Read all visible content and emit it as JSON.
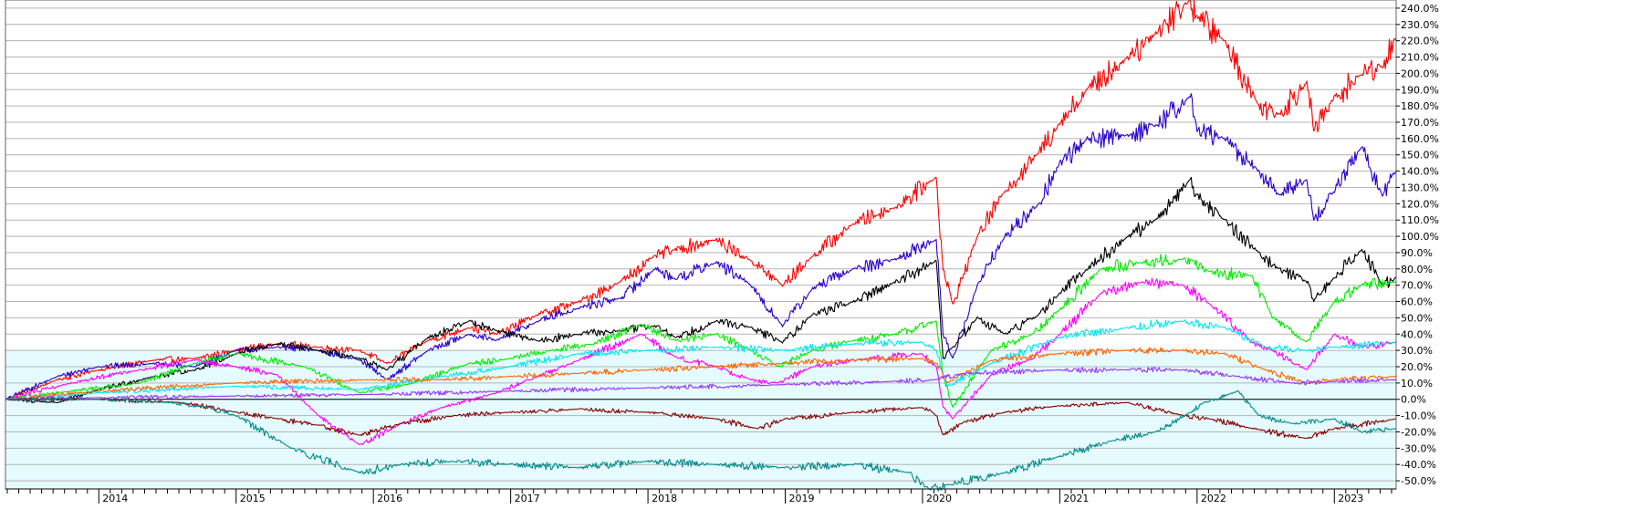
{
  "chart_data": {
    "type": "line",
    "title": "",
    "xlabel": "",
    "ylabel": "",
    "ylim": [
      -55,
      245
    ],
    "xlim": [
      2013.32,
      2023.45
    ],
    "y_ticks": [
      240,
      230,
      220,
      210,
      200,
      190,
      180,
      170,
      160,
      150,
      140,
      130,
      120,
      110,
      100,
      90,
      80,
      70,
      60,
      50,
      40,
      30,
      20,
      10,
      0,
      -10,
      -20,
      -30,
      -40,
      -50
    ],
    "y_tick_labels": [
      "240.0%",
      "230.0%",
      "220.0%",
      "210.0%",
      "200.0%",
      "190.0%",
      "180.0%",
      "170.0%",
      "160.0%",
      "150.0%",
      "140.0%",
      "130.0%",
      "120.0%",
      "110.0%",
      "100.0%",
      "90.0%",
      "80.0%",
      "70.0%",
      "60.0%",
      "50.0%",
      "40.0%",
      "30.0%",
      "20.0%",
      "10.0%",
      "0.0%",
      "-10.0%",
      "-20.0%",
      "-30.0%",
      "-40.0%",
      "-50.0%"
    ],
    "years": [
      {
        "x": 2014,
        "label": "2014"
      },
      {
        "x": 2015,
        "label": "2015"
      },
      {
        "x": 2016,
        "label": "2016"
      },
      {
        "x": 2017,
        "label": "2017"
      },
      {
        "x": 2018,
        "label": "2018"
      },
      {
        "x": 2019,
        "label": "2019"
      },
      {
        "x": 2020,
        "label": "2020"
      },
      {
        "x": 2021,
        "label": "2021"
      },
      {
        "x": 2022,
        "label": "2022"
      },
      {
        "x": 2023,
        "label": "2023"
      }
    ],
    "grid": true,
    "shade_below": 30,
    "background_colors": {
      "upper": "#ffffff",
      "lower": "#e6fbff"
    },
    "series": [
      {
        "color": "#ff0000",
        "x": [
          2013.32,
          2013.7,
          2014.0,
          2014.4,
          2014.7,
          2015.0,
          2015.3,
          2015.6,
          2015.9,
          2016.1,
          2016.4,
          2016.7,
          2016.9,
          2017.2,
          2017.5,
          2017.8,
          2018.05,
          2018.2,
          2018.5,
          2018.75,
          2018.98,
          2019.2,
          2019.5,
          2019.8,
          2020.1,
          2020.15,
          2020.22,
          2020.4,
          2020.6,
          2020.85,
          2021.0,
          2021.2,
          2021.5,
          2021.7,
          2021.95,
          2022.0,
          2022.2,
          2022.45,
          2022.6,
          2022.8,
          2022.85,
          2023.0,
          2023.2,
          2023.35,
          2023.45
        ],
        "values": [
          0,
          12,
          18,
          24,
          25,
          30,
          34,
          32,
          30,
          22,
          36,
          44,
          40,
          52,
          60,
          72,
          88,
          92,
          98,
          85,
          70,
          88,
          108,
          118,
          136,
          80,
          58,
          100,
          128,
          152,
          170,
          190,
          210,
          225,
          245,
          235,
          220,
          180,
          175,
          195,
          165,
          185,
          200,
          205,
          222
        ]
      },
      {
        "color": "#2a00cc",
        "x": [
          2013.32,
          2013.7,
          2014.0,
          2014.4,
          2014.7,
          2015.0,
          2015.3,
          2015.6,
          2015.9,
          2016.1,
          2016.4,
          2016.7,
          2016.9,
          2017.2,
          2017.5,
          2017.8,
          2018.05,
          2018.2,
          2018.5,
          2018.75,
          2018.98,
          2019.2,
          2019.5,
          2019.8,
          2020.1,
          2020.15,
          2020.22,
          2020.4,
          2020.6,
          2020.85,
          2021.0,
          2021.2,
          2021.5,
          2021.7,
          2021.95,
          2022.0,
          2022.2,
          2022.45,
          2022.6,
          2022.8,
          2022.85,
          2023.0,
          2023.2,
          2023.35,
          2023.45
        ],
        "values": [
          0,
          14,
          20,
          22,
          20,
          30,
          32,
          30,
          24,
          12,
          30,
          40,
          36,
          48,
          56,
          62,
          80,
          74,
          84,
          70,
          45,
          68,
          80,
          86,
          98,
          40,
          25,
          70,
          100,
          120,
          145,
          160,
          162,
          168,
          186,
          165,
          160,
          140,
          125,
          135,
          110,
          128,
          155,
          125,
          140
        ]
      },
      {
        "color": "#000000",
        "x": [
          2013.32,
          2013.7,
          2014.0,
          2014.4,
          2014.7,
          2015.0,
          2015.3,
          2015.6,
          2015.9,
          2016.1,
          2016.4,
          2016.7,
          2016.9,
          2017.2,
          2017.5,
          2017.8,
          2018.05,
          2018.2,
          2018.5,
          2018.75,
          2018.98,
          2019.2,
          2019.5,
          2019.8,
          2020.1,
          2020.15,
          2020.22,
          2020.4,
          2020.6,
          2020.85,
          2021.0,
          2021.2,
          2021.5,
          2021.7,
          2021.95,
          2022.0,
          2022.2,
          2022.45,
          2022.6,
          2022.8,
          2022.85,
          2023.0,
          2023.2,
          2023.35,
          2023.45
        ],
        "values": [
          0,
          -2,
          6,
          14,
          18,
          28,
          34,
          30,
          25,
          18,
          38,
          48,
          42,
          36,
          40,
          42,
          45,
          38,
          48,
          44,
          35,
          52,
          60,
          72,
          85,
          25,
          32,
          50,
          40,
          52,
          65,
          80,
          100,
          110,
          135,
          125,
          110,
          90,
          80,
          72,
          60,
          75,
          92,
          70,
          75
        ]
      },
      {
        "color": "#00ee00",
        "x": [
          2013.32,
          2013.8,
          2014.3,
          2014.7,
          2015.0,
          2015.5,
          2015.9,
          2016.3,
          2016.7,
          2017.0,
          2017.3,
          2017.6,
          2017.95,
          2018.2,
          2018.5,
          2018.75,
          2018.95,
          2019.2,
          2019.5,
          2019.8,
          2020.1,
          2020.15,
          2020.22,
          2020.5,
          2020.8,
          2021.0,
          2021.3,
          2021.6,
          2021.9,
          2022.1,
          2022.4,
          2022.55,
          2022.8,
          2023.0,
          2023.2,
          2023.45
        ],
        "values": [
          0,
          5,
          10,
          22,
          28,
          20,
          4,
          10,
          22,
          25,
          30,
          34,
          46,
          36,
          40,
          30,
          20,
          30,
          36,
          40,
          48,
          15,
          -5,
          30,
          40,
          55,
          80,
          84,
          86,
          78,
          76,
          50,
          35,
          60,
          70,
          72
        ]
      },
      {
        "color": "#ff00ff",
        "x": [
          2013.32,
          2013.8,
          2014.3,
          2014.7,
          2015.0,
          2015.3,
          2015.6,
          2015.9,
          2016.2,
          2016.5,
          2016.9,
          2017.2,
          2017.5,
          2017.95,
          2018.2,
          2018.5,
          2018.75,
          2018.95,
          2019.2,
          2019.6,
          2020.0,
          2020.1,
          2020.15,
          2020.22,
          2020.5,
          2020.8,
          2021.0,
          2021.3,
          2021.6,
          2021.9,
          2022.1,
          2022.4,
          2022.55,
          2022.8,
          2023.0,
          2023.2,
          2023.45
        ],
        "values": [
          0,
          10,
          18,
          24,
          20,
          15,
          -10,
          -28,
          -15,
          -5,
          4,
          14,
          24,
          40,
          26,
          20,
          12,
          10,
          20,
          25,
          28,
          20,
          -5,
          -12,
          15,
          25,
          40,
          65,
          72,
          70,
          58,
          35,
          30,
          18,
          40,
          32,
          35
        ]
      },
      {
        "color": "#00e8f0",
        "x": [
          2013.32,
          2014.0,
          2015.0,
          2015.9,
          2016.5,
          2017.0,
          2017.5,
          2018.0,
          2018.5,
          2019.0,
          2019.5,
          2020.0,
          2020.1,
          2020.18,
          2020.5,
          2021.0,
          2021.5,
          2021.9,
          2022.2,
          2022.5,
          2022.8,
          2023.0,
          2023.45
        ],
        "values": [
          0,
          4,
          8,
          6,
          14,
          20,
          28,
          30,
          32,
          30,
          34,
          35,
          30,
          8,
          22,
          38,
          44,
          48,
          44,
          32,
          30,
          32,
          35
        ]
      },
      {
        "color": "#ff6600",
        "x": [
          2013.32,
          2014.0,
          2015.0,
          2016.0,
          2016.5,
          2017.0,
          2017.5,
          2018.0,
          2018.5,
          2019.0,
          2019.5,
          2020.0,
          2020.1,
          2020.18,
          2020.5,
          2021.0,
          2021.5,
          2021.9,
          2022.2,
          2022.5,
          2022.8,
          2023.0,
          2023.45
        ],
        "values": [
          0,
          5,
          10,
          12,
          12,
          14,
          16,
          18,
          20,
          22,
          24,
          25,
          22,
          10,
          24,
          28,
          30,
          30,
          28,
          18,
          10,
          12,
          14
        ]
      },
      {
        "color": "#9933ff",
        "x": [
          2013.32,
          2014.0,
          2015.0,
          2016.0,
          2017.0,
          2018.0,
          2019.0,
          2019.8,
          2020.1,
          2020.3,
          2021.0,
          2021.5,
          2021.9,
          2022.3,
          2022.7,
          2023.0,
          2023.45
        ],
        "values": [
          0,
          1,
          2,
          3,
          5,
          7,
          9,
          11,
          12,
          16,
          18,
          18,
          18,
          14,
          10,
          11,
          12
        ]
      },
      {
        "color": "#880000",
        "x": [
          2013.32,
          2014.0,
          2014.6,
          2015.0,
          2015.3,
          2015.6,
          2015.9,
          2016.2,
          2016.6,
          2017.0,
          2017.5,
          2018.0,
          2018.5,
          2018.8,
          2019.0,
          2019.5,
          2020.0,
          2020.1,
          2020.15,
          2020.3,
          2020.6,
          2021.0,
          2021.5,
          2021.9,
          2022.1,
          2022.4,
          2022.8,
          2023.0,
          2023.45
        ],
        "values": [
          0,
          0,
          -2,
          -8,
          -12,
          -16,
          -22,
          -15,
          -10,
          -8,
          -6,
          -8,
          -12,
          -18,
          -12,
          -8,
          -5,
          -10,
          -22,
          -14,
          -8,
          -4,
          -2,
          -10,
          -12,
          -18,
          -24,
          -18,
          -12
        ]
      },
      {
        "color": "#008b8b",
        "x": [
          2013.32,
          2014.0,
          2014.5,
          2014.8,
          2015.0,
          2015.4,
          2015.9,
          2016.2,
          2016.6,
          2017.0,
          2017.5,
          2018.0,
          2018.5,
          2019.0,
          2019.5,
          2019.9,
          2020.05,
          2020.2,
          2020.6,
          2021.0,
          2021.4,
          2021.7,
          2021.95,
          2022.05,
          2022.3,
          2022.45,
          2022.7,
          2023.0,
          2023.2,
          2023.45
        ],
        "values": [
          0,
          0,
          -2,
          -5,
          -10,
          -30,
          -45,
          -40,
          -38,
          -40,
          -42,
          -38,
          -40,
          -42,
          -40,
          -45,
          -55,
          -52,
          -45,
          -35,
          -25,
          -20,
          -8,
          -2,
          5,
          -10,
          -15,
          -12,
          -20,
          -18
        ]
      }
    ]
  }
}
